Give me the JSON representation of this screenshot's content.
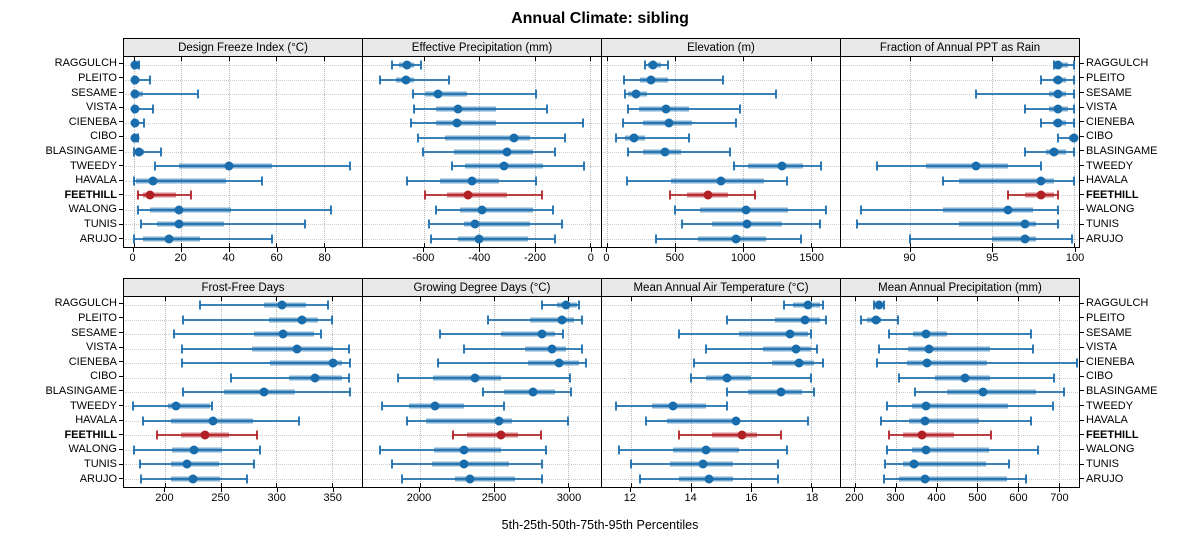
{
  "title": "Annual Climate: sibling",
  "caption": "5th-25th-50th-75th-95th Percentiles",
  "highlight_site": "FEETHILL",
  "sites": [
    "RAGGULCH",
    "PLEITO",
    "SESAME",
    "VISTA",
    "CIENEBA",
    "CIBO",
    "BLASINGAME",
    "TWEEDY",
    "HAVALA",
    "FEETHILL",
    "WALONG",
    "TUNIS",
    "ARUJO"
  ],
  "colors": {
    "series": "#1a6dad",
    "highlight": "#b22025",
    "strip_bg": "#e8e8e8",
    "grid": "#bfbfbf",
    "border": "#000000"
  },
  "chart_data": {
    "type": "percentile-dotplot",
    "percentiles": [
      5,
      25,
      50,
      75,
      95
    ],
    "layout": {
      "rows": 2,
      "cols": 4
    },
    "panels": [
      {
        "title": "Design Freeze Index (°C)",
        "xlim": [
          -4,
          96
        ],
        "ticks": [
          0,
          20,
          40,
          60,
          80
        ],
        "values": [
          [
            0,
            0,
            0.5,
            1,
            2.5
          ],
          [
            0,
            0,
            0.5,
            1.5,
            7
          ],
          [
            0,
            0,
            0.5,
            4,
            27
          ],
          [
            0,
            0,
            0.5,
            1.5,
            8
          ],
          [
            0,
            0,
            0.5,
            1,
            4.5
          ],
          [
            0,
            0,
            0.5,
            1,
            2
          ],
          [
            0,
            0.5,
            2.5,
            4.5,
            11.5
          ],
          [
            9,
            19,
            40,
            58,
            91
          ],
          [
            0,
            1,
            8,
            39,
            54
          ],
          [
            2,
            4,
            7,
            18,
            24
          ],
          [
            2,
            7,
            19,
            41,
            83
          ],
          [
            3,
            10,
            19,
            38,
            72
          ],
          [
            0,
            4,
            15,
            28,
            58
          ]
        ]
      },
      {
        "title": "Effective Precipitation (mm)",
        "xlim": [
          -820,
          40
        ],
        "ticks": [
          -600,
          -400,
          -200,
          0
        ],
        "values": [
          [
            -715,
            -690,
            -660,
            -635,
            -610
          ],
          [
            -760,
            -700,
            -665,
            -635,
            -510
          ],
          [
            -640,
            -595,
            -550,
            -445,
            -195
          ],
          [
            -635,
            -555,
            -475,
            -340,
            -155
          ],
          [
            -645,
            -555,
            -480,
            -340,
            -25
          ],
          [
            -620,
            -525,
            -275,
            -215,
            -90
          ],
          [
            -605,
            -490,
            -300,
            -205,
            -125
          ],
          [
            -500,
            -450,
            -310,
            -170,
            -20
          ],
          [
            -660,
            -540,
            -425,
            -330,
            -195
          ],
          [
            -595,
            -515,
            -440,
            -300,
            -175
          ],
          [
            -555,
            -470,
            -390,
            -205,
            -135
          ],
          [
            -580,
            -455,
            -415,
            -215,
            -100
          ],
          [
            -575,
            -475,
            -400,
            -225,
            -125
          ]
        ]
      },
      {
        "title": "Elevation (m)",
        "xlim": [
          -40,
          1715
        ],
        "ticks": [
          0,
          500,
          1000,
          1500
        ],
        "values": [
          [
            275,
            300,
            335,
            395,
            445
          ],
          [
            120,
            240,
            325,
            445,
            855
          ],
          [
            130,
            155,
            210,
            290,
            1240
          ],
          [
            150,
            230,
            435,
            600,
            975
          ],
          [
            115,
            265,
            455,
            625,
            945
          ],
          [
            60,
            130,
            195,
            275,
            600
          ],
          [
            155,
            265,
            425,
            540,
            905
          ],
          [
            935,
            1035,
            1285,
            1445,
            1575
          ],
          [
            145,
            470,
            840,
            1155,
            1325
          ],
          [
            460,
            590,
            740,
            890,
            1090
          ],
          [
            495,
            685,
            1025,
            1335,
            1615
          ],
          [
            550,
            770,
            1030,
            1290,
            1570
          ],
          [
            360,
            670,
            950,
            1170,
            1425
          ]
        ]
      },
      {
        "title": "Fraction of Annual PPT as Rain",
        "xlim": [
          85.8,
          100.3
        ],
        "ticks": [
          90,
          95,
          100
        ],
        "values": [
          [
            98.8,
            98.9,
            99,
            99.6,
            100
          ],
          [
            98,
            98.7,
            99,
            99.5,
            100
          ],
          [
            94,
            98.5,
            99,
            99.5,
            100
          ],
          [
            97,
            98.5,
            99,
            99.6,
            100
          ],
          [
            98,
            98.7,
            99,
            99.5,
            100
          ],
          [
            99,
            99.7,
            100,
            100,
            100
          ],
          [
            97,
            98.3,
            98.8,
            99.5,
            100
          ],
          [
            88,
            91,
            94,
            96,
            98
          ],
          [
            92,
            93,
            98,
            98.8,
            100
          ],
          [
            96,
            97,
            98,
            98.8,
            99
          ],
          [
            87,
            92,
            96,
            97.5,
            99
          ],
          [
            86.8,
            93,
            97,
            97.7,
            99
          ],
          [
            90,
            95,
            97,
            97.7,
            99.9
          ]
        ]
      },
      {
        "title": "Frost-Free Days",
        "xlim": [
          163,
          377
        ],
        "ticks": [
          200,
          250,
          300,
          350
        ],
        "values": [
          [
            231,
            289,
            305,
            327,
            346
          ],
          [
            216,
            293,
            323,
            337,
            350
          ],
          [
            208,
            280,
            306,
            334,
            340
          ],
          [
            215,
            278,
            319,
            351,
            365
          ],
          [
            215,
            294,
            351,
            359,
            366
          ],
          [
            259,
            311,
            335,
            359,
            365
          ],
          [
            216,
            253,
            289,
            317,
            366
          ],
          [
            171,
            203,
            210,
            240,
            242
          ],
          [
            180,
            205,
            243,
            279,
            320
          ],
          [
            193,
            214,
            236,
            257,
            283
          ],
          [
            172,
            206,
            226,
            251,
            285
          ],
          [
            177,
            205,
            220,
            248,
            280
          ],
          [
            178,
            205,
            225,
            249,
            274
          ]
        ]
      },
      {
        "title": "Growing Degree Days (°C)",
        "xlim": [
          1620,
          3220
        ],
        "ticks": [
          2000,
          2500,
          3000
        ],
        "values": [
          [
            2826,
            2923,
            2983,
            3056,
            3073
          ],
          [
            2461,
            2740,
            2959,
            3041,
            3094
          ],
          [
            2135,
            2547,
            2826,
            2912,
            2966
          ],
          [
            2296,
            2708,
            2890,
            2987,
            3094
          ],
          [
            2122,
            2730,
            2938,
            3073,
            3120
          ],
          [
            1854,
            2090,
            2376,
            2550,
            3009
          ],
          [
            2429,
            2569,
            2766,
            2912,
            3019
          ],
          [
            1749,
            1931,
            2107,
            2300,
            2569
          ],
          [
            1914,
            2043,
            2536,
            2622,
            2998
          ],
          [
            2225,
            2322,
            2547,
            2665,
            2815
          ],
          [
            1736,
            2097,
            2300,
            2547,
            2848
          ],
          [
            1818,
            2082,
            2296,
            2601,
            2820
          ],
          [
            1882,
            2236,
            2339,
            2644,
            2826
          ]
        ]
      },
      {
        "title": "Mean Annual Air Temperature (°C)",
        "xlim": [
          11.05,
          18.95
        ],
        "ticks": [
          12,
          14,
          16,
          18
        ],
        "values": [
          [
            17.1,
            17.4,
            17.9,
            18.3,
            18.4
          ],
          [
            15.2,
            16.8,
            17.8,
            18.3,
            18.5
          ],
          [
            13.6,
            15.6,
            17.3,
            17.9,
            18.0
          ],
          [
            14.5,
            16.4,
            17.5,
            18.0,
            18.2
          ],
          [
            14.1,
            16.7,
            17.6,
            18.1,
            18.4
          ],
          [
            14.0,
            14.5,
            15.2,
            16.0,
            18.0
          ],
          [
            15.2,
            15.9,
            17.0,
            17.7,
            18.1
          ],
          [
            11.5,
            12.7,
            13.4,
            14.5,
            15.2
          ],
          [
            12.5,
            13.2,
            15.5,
            15.6,
            17.9
          ],
          [
            13.6,
            14.7,
            15.7,
            16.2,
            17.0
          ],
          [
            11.6,
            13.4,
            14.5,
            15.6,
            17.2
          ],
          [
            12.0,
            13.3,
            14.4,
            15.4,
            16.9
          ],
          [
            12.3,
            13.6,
            14.6,
            15.4,
            16.9
          ]
        ]
      },
      {
        "title": "Mean Annual Precipitation (mm)",
        "xlim": [
          165,
          750
        ],
        "ticks": [
          200,
          300,
          400,
          500,
          600,
          700
        ],
        "values": [
          [
            245,
            250,
            259,
            267,
            271
          ],
          [
            213,
            229,
            250,
            263,
            304
          ],
          [
            282,
            342,
            375,
            426,
            631
          ],
          [
            258,
            330,
            381,
            531,
            637
          ],
          [
            254,
            328,
            377,
            525,
            745
          ],
          [
            308,
            397,
            469,
            531,
            689
          ],
          [
            347,
            426,
            515,
            645,
            712
          ],
          [
            278,
            339,
            375,
            576,
            687
          ],
          [
            263,
            332,
            371,
            505,
            631
          ],
          [
            284,
            318,
            365,
            442,
            534
          ],
          [
            278,
            339,
            375,
            529,
            649
          ],
          [
            274,
            318,
            345,
            521,
            578
          ],
          [
            271,
            308,
            371,
            574,
            620
          ]
        ]
      }
    ]
  }
}
